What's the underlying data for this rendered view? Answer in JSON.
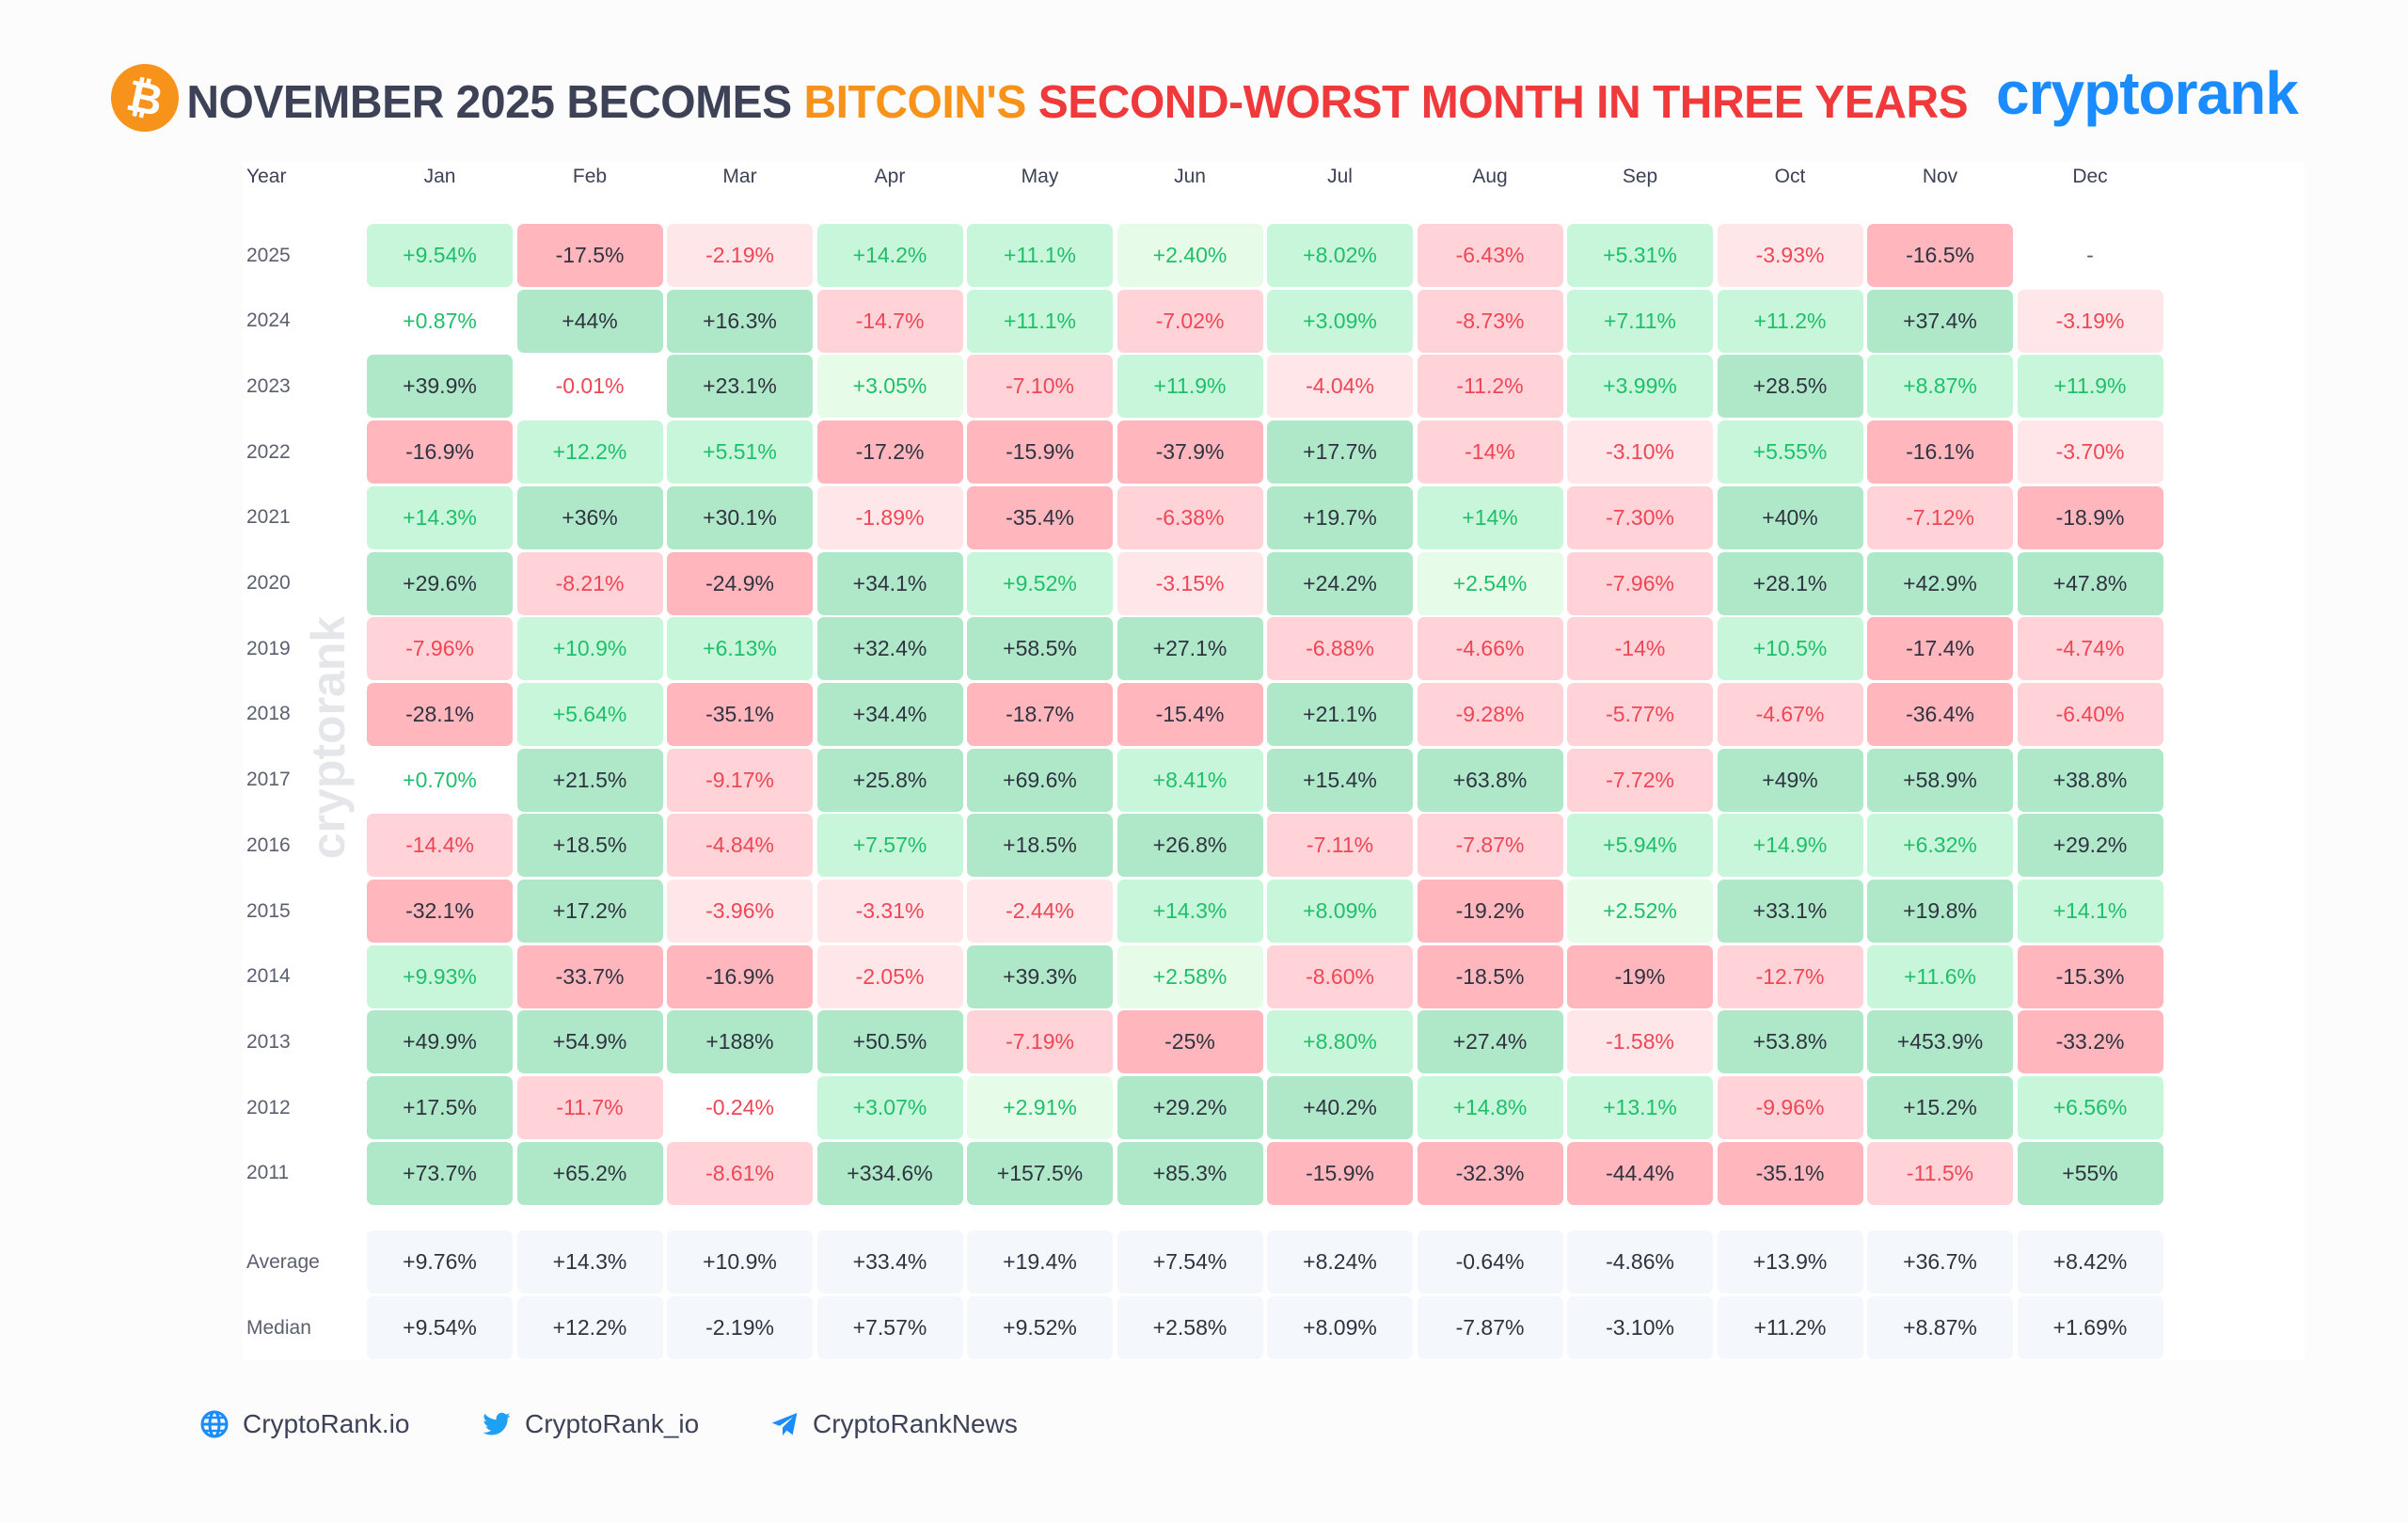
{
  "header": {
    "title_part1": "NOVEMBER 2025 BECOMES ",
    "title_part2": "BITCOIN'S ",
    "title_part3": "SECOND-WORST MONTH IN THREE YEARS",
    "logo": "cryptorank",
    "btc_icon": "bitcoin-icon",
    "colors": {
      "dark": "#3d4256",
      "orange": "#f7931a",
      "red": "#f0393b",
      "brand": "#1a8cff"
    }
  },
  "watermark": "cryptorank",
  "chart_data": {
    "type": "heatmap",
    "title": "NOVEMBER 2025 BECOMES BITCOIN'S SECOND-WORST MONTH IN THREE YEARS",
    "corner_label": "Year",
    "columns": [
      "Jan",
      "Feb",
      "Mar",
      "Apr",
      "May",
      "Jun",
      "Jul",
      "Aug",
      "Sep",
      "Oct",
      "Nov",
      "Dec"
    ],
    "rows": [
      {
        "year": "2025",
        "values": [
          "+9.54%",
          "-17.5%",
          "-2.19%",
          "+14.2%",
          "+11.1%",
          "+2.40%",
          "+8.02%",
          "-6.43%",
          "+5.31%",
          "-3.93%",
          "-16.5%",
          "-"
        ]
      },
      {
        "year": "2024",
        "values": [
          "+0.87%",
          "+44%",
          "+16.3%",
          "-14.7%",
          "+11.1%",
          "-7.02%",
          "+3.09%",
          "-8.73%",
          "+7.11%",
          "+11.2%",
          "+37.4%",
          "-3.19%"
        ]
      },
      {
        "year": "2023",
        "values": [
          "+39.9%",
          "-0.01%",
          "+23.1%",
          "+3.05%",
          "-7.10%",
          "+11.9%",
          "-4.04%",
          "-11.2%",
          "+3.99%",
          "+28.5%",
          "+8.87%",
          "+11.9%"
        ]
      },
      {
        "year": "2022",
        "values": [
          "-16.9%",
          "+12.2%",
          "+5.51%",
          "-17.2%",
          "-15.9%",
          "-37.9%",
          "+17.7%",
          "-14%",
          "-3.10%",
          "+5.55%",
          "-16.1%",
          "-3.70%"
        ]
      },
      {
        "year": "2021",
        "values": [
          "+14.3%",
          "+36%",
          "+30.1%",
          "-1.89%",
          "-35.4%",
          "-6.38%",
          "+19.7%",
          "+14%",
          "-7.30%",
          "+40%",
          "-7.12%",
          "-18.9%"
        ]
      },
      {
        "year": "2020",
        "values": [
          "+29.6%",
          "-8.21%",
          "-24.9%",
          "+34.1%",
          "+9.52%",
          "-3.15%",
          "+24.2%",
          "+2.54%",
          "-7.96%",
          "+28.1%",
          "+42.9%",
          "+47.8%"
        ]
      },
      {
        "year": "2019",
        "values": [
          "-7.96%",
          "+10.9%",
          "+6.13%",
          "+32.4%",
          "+58.5%",
          "+27.1%",
          "-6.88%",
          "-4.66%",
          "-14%",
          "+10.5%",
          "-17.4%",
          "-4.74%"
        ]
      },
      {
        "year": "2018",
        "values": [
          "-28.1%",
          "+5.64%",
          "-35.1%",
          "+34.4%",
          "-18.7%",
          "-15.4%",
          "+21.1%",
          "-9.28%",
          "-5.77%",
          "-4.67%",
          "-36.4%",
          "-6.40%"
        ]
      },
      {
        "year": "2017",
        "values": [
          "+0.70%",
          "+21.5%",
          "-9.17%",
          "+25.8%",
          "+69.6%",
          "+8.41%",
          "+15.4%",
          "+63.8%",
          "-7.72%",
          "+49%",
          "+58.9%",
          "+38.8%"
        ]
      },
      {
        "year": "2016",
        "values": [
          "-14.4%",
          "+18.5%",
          "-4.84%",
          "+7.57%",
          "+18.5%",
          "+26.8%",
          "-7.11%",
          "-7.87%",
          "+5.94%",
          "+14.9%",
          "+6.32%",
          "+29.2%"
        ]
      },
      {
        "year": "2015",
        "values": [
          "-32.1%",
          "+17.2%",
          "-3.96%",
          "-3.31%",
          "-2.44%",
          "+14.3%",
          "+8.09%",
          "-19.2%",
          "+2.52%",
          "+33.1%",
          "+19.8%",
          "+14.1%"
        ]
      },
      {
        "year": "2014",
        "values": [
          "+9.93%",
          "-33.7%",
          "-16.9%",
          "-2.05%",
          "+39.3%",
          "+2.58%",
          "-8.60%",
          "-18.5%",
          "-19%",
          "-12.7%",
          "+11.6%",
          "-15.3%"
        ]
      },
      {
        "year": "2013",
        "values": [
          "+49.9%",
          "+54.9%",
          "+188%",
          "+50.5%",
          "-7.19%",
          "-25%",
          "+8.80%",
          "+27.4%",
          "-1.58%",
          "+53.8%",
          "+453.9%",
          "-33.2%"
        ]
      },
      {
        "year": "2012",
        "values": [
          "+17.5%",
          "-11.7%",
          "-0.24%",
          "+3.07%",
          "+2.91%",
          "+29.2%",
          "+40.2%",
          "+14.8%",
          "+13.1%",
          "-9.96%",
          "+15.2%",
          "+6.56%"
        ]
      },
      {
        "year": "2011",
        "values": [
          "+73.7%",
          "+65.2%",
          "-8.61%",
          "+334.6%",
          "+157.5%",
          "+85.3%",
          "-15.9%",
          "-32.3%",
          "-44.4%",
          "-35.1%",
          "-11.5%",
          "+55%"
        ]
      }
    ],
    "summary": [
      {
        "label": "Average",
        "values": [
          "+9.76%",
          "+14.3%",
          "+10.9%",
          "+33.4%",
          "+19.4%",
          "+7.54%",
          "+8.24%",
          "-0.64%",
          "-4.86%",
          "+13.9%",
          "+36.7%",
          "+8.42%"
        ]
      },
      {
        "label": "Median",
        "values": [
          "+9.54%",
          "+12.2%",
          "-2.19%",
          "+7.57%",
          "+9.52%",
          "+2.58%",
          "+8.09%",
          "-7.87%",
          "-3.10%",
          "+11.2%",
          "+8.87%",
          "+1.69%"
        ]
      }
    ],
    "colors": {
      "green_strong": "#aee8c8",
      "green_mid": "#c8f6da",
      "green_light": "#e6fce9",
      "red_strong": "#ffb6bc",
      "red_mid": "#ffd3d7",
      "red_light": "#ffe6e8",
      "green_text": "#1fbf6a",
      "red_text": "#ef4656",
      "dark_text": "#2f3340",
      "summary_bg": "#f4f7fc"
    }
  },
  "footer": {
    "website": "CryptoRank.io",
    "twitter": "CryptoRank_io",
    "telegram": "CryptoRankNews",
    "color": "#1a8cff"
  }
}
